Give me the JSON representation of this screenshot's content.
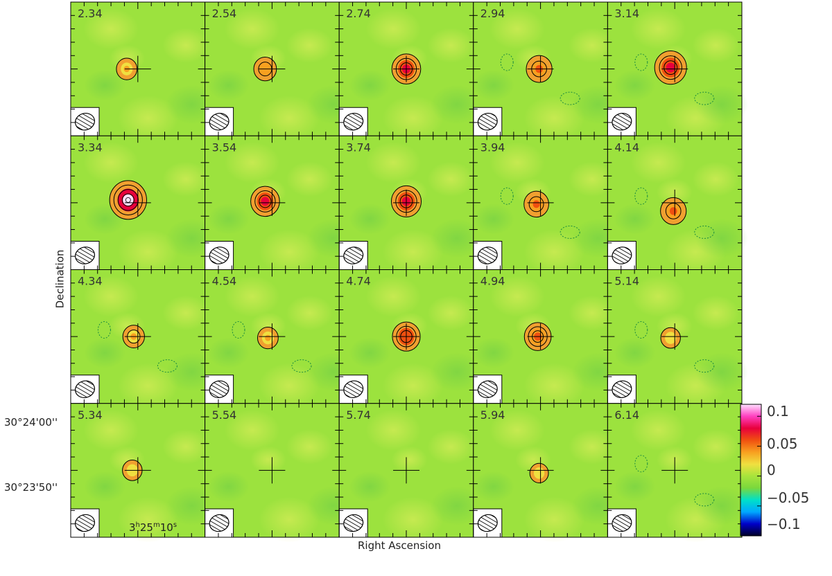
{
  "axes": {
    "xlabel": "Right Ascension",
    "ylabel": "Declination",
    "ra_tick": {
      "h": "3",
      "m": "25",
      "s": "10"
    },
    "dec_ticks": [
      "30°24'00''",
      "30°23'50''"
    ]
  },
  "colorbar": {
    "ticks": [
      "0.1",
      "0.05",
      "0",
      "−0.05",
      "−0.1"
    ],
    "range": [
      -0.1,
      0.12
    ],
    "colors": [
      "#000028",
      "#0000c8",
      "#00a8ff",
      "#00e0c8",
      "#7ad83c",
      "#a8e43c",
      "#f0e040",
      "#f8a020",
      "#f05010",
      "#e8003c",
      "#ff40c0",
      "#ffe0ff"
    ]
  },
  "colors": {
    "field": "#9ce23e",
    "contour": "#000000"
  },
  "channels": [
    "2.34",
    "2.54",
    "2.74",
    "2.94",
    "3.14",
    "3.34",
    "3.54",
    "3.74",
    "3.94",
    "4.14",
    "4.34",
    "4.54",
    "4.74",
    "4.94",
    "5.14",
    "5.34",
    "5.54",
    "5.74",
    "5.94",
    "6.14"
  ],
  "peaks": [
    0.03,
    0.04,
    0.07,
    0.055,
    0.085,
    0.11,
    0.07,
    0.075,
    0.05,
    0.055,
    0.035,
    0.03,
    0.065,
    0.06,
    0.025,
    0.025,
    0.0,
    0.0,
    0.02,
    0.0
  ]
}
